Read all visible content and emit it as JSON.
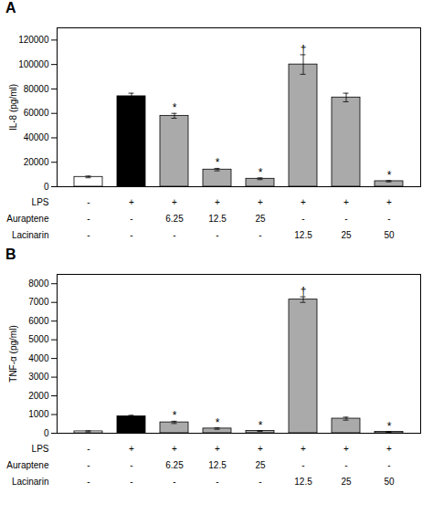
{
  "chart_data": [
    {
      "type": "bar",
      "title": "A",
      "ylabel": "IL-8 (pg/ml)",
      "categories": [
        null,
        null,
        null,
        null,
        null,
        null,
        null,
        null
      ],
      "values": [
        8000,
        74000,
        58000,
        14000,
        6500,
        100000,
        73000,
        4500
      ],
      "errors": [
        700,
        2500,
        2000,
        1000,
        700,
        8000,
        3500,
        500
      ],
      "colors": [
        "#ffffff",
        "#000000",
        "#aaaaaa",
        "#aaaaaa",
        "#aaaaaa",
        "#aaaaaa",
        "#aaaaaa",
        "#aaaaaa"
      ],
      "ylim": [
        0,
        130000
      ],
      "yticks": [
        0,
        20000,
        40000,
        60000,
        80000,
        100000,
        120000
      ],
      "grid": false,
      "tick_labels": "y",
      "annotations": [
        {
          "index": 2,
          "text": "*"
        },
        {
          "index": 3,
          "text": "*"
        },
        {
          "index": 4,
          "text": "*"
        },
        {
          "index": 5,
          "text": "†"
        },
        {
          "index": 7,
          "text": "*"
        }
      ],
      "table": [
        {
          "label": "LPS",
          "cells": [
            "-",
            "+",
            "+",
            "+",
            "+",
            "+",
            "+",
            "+"
          ]
        },
        {
          "label": "Auraptene",
          "cells": [
            "-",
            "-",
            "6.25",
            "12.5",
            "25",
            "-",
            "-",
            "-"
          ]
        },
        {
          "label": "Lacinarin",
          "cells": [
            "-",
            "-",
            "-",
            "-",
            "-",
            "12.5",
            "25",
            "50"
          ]
        }
      ]
    },
    {
      "type": "bar",
      "title": "B",
      "ylabel": "TNF-α (pg/ml)",
      "categories": [
        null,
        null,
        null,
        null,
        null,
        null,
        null,
        null
      ],
      "values": [
        100,
        900,
        580,
        250,
        120,
        7150,
        780,
        70
      ],
      "errors": [
        30,
        60,
        60,
        40,
        25,
        150,
        80,
        15
      ],
      "colors": [
        "#ffffff",
        "#000000",
        "#aaaaaa",
        "#aaaaaa",
        "#aaaaaa",
        "#aaaaaa",
        "#aaaaaa",
        "#aaaaaa"
      ],
      "ylim": [
        0,
        8500
      ],
      "yticks": [
        0,
        1000,
        2000,
        3000,
        4000,
        5000,
        6000,
        7000,
        8000
      ],
      "grid": false,
      "tick_labels": "y",
      "annotations": [
        {
          "index": 2,
          "text": "*"
        },
        {
          "index": 3,
          "text": "*"
        },
        {
          "index": 4,
          "text": "*"
        },
        {
          "index": 5,
          "text": "†"
        },
        {
          "index": 7,
          "text": "*"
        }
      ],
      "table": [
        {
          "label": "LPS",
          "cells": [
            "-",
            "+",
            "+",
            "+",
            "+",
            "+",
            "+",
            "+"
          ]
        },
        {
          "label": "Auraptene",
          "cells": [
            "-",
            "-",
            "6.25",
            "12.5",
            "25",
            "-",
            "-",
            "-"
          ]
        },
        {
          "label": "Lacinarin",
          "cells": [
            "-",
            "-",
            "-",
            "-",
            "-",
            "12.5",
            "25",
            "50"
          ]
        }
      ]
    }
  ]
}
